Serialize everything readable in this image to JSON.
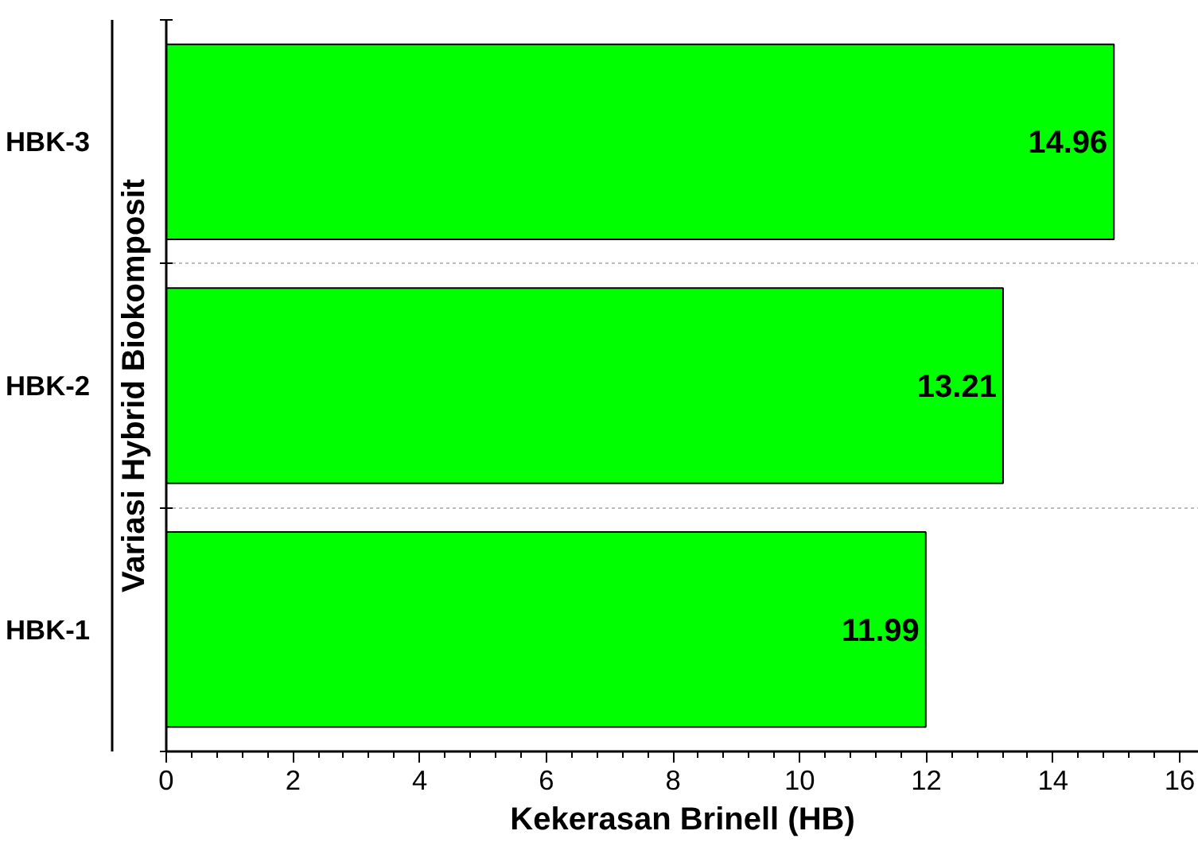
{
  "chart_data": {
    "type": "bar",
    "orientation": "horizontal",
    "categories": [
      "HBK-3",
      "HBK-2",
      "HBK-1"
    ],
    "values": [
      14.96,
      13.21,
      11.99
    ],
    "color": "#00ff00",
    "data_labels": true,
    "xlabel": "Kekerasan Brinell (HB)",
    "ylabel": "Variasi Hybrid Biokomposit",
    "xlim": [
      0,
      16.3
    ],
    "xticks": [
      0,
      2,
      4,
      6,
      8,
      10,
      12,
      14,
      16
    ],
    "grid": "y"
  }
}
